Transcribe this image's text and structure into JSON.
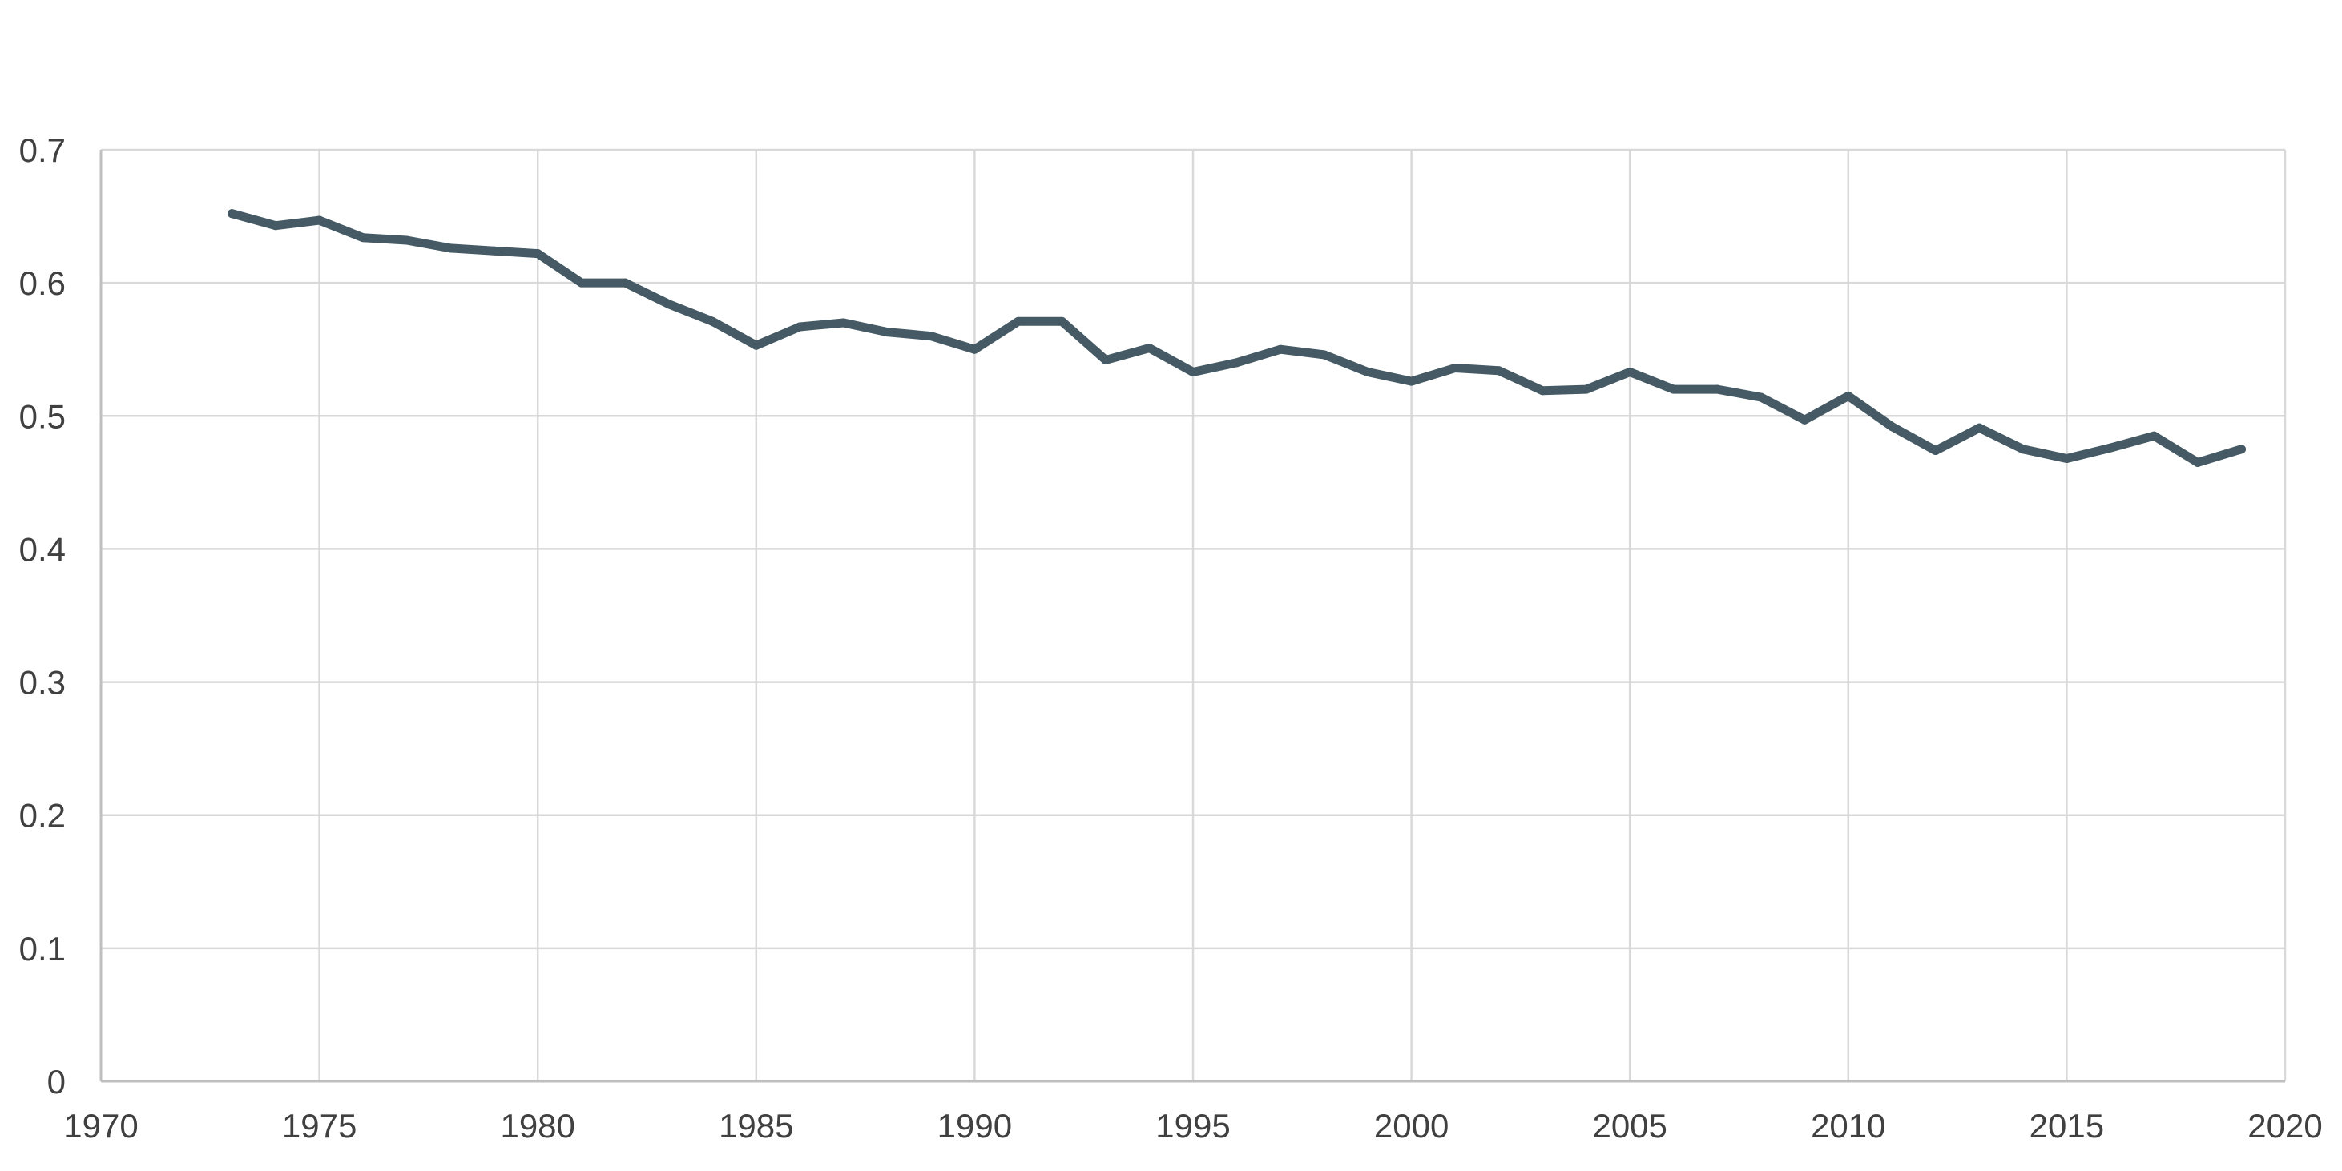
{
  "chart_data": {
    "type": "line",
    "title": "",
    "xlabel": "",
    "ylabel": "",
    "xlim": [
      1970,
      2020
    ],
    "ylim": [
      0,
      0.7
    ],
    "x_ticks": [
      1970,
      1975,
      1980,
      1985,
      1990,
      1995,
      2000,
      2005,
      2010,
      2015,
      2020
    ],
    "y_ticks": [
      0,
      0.1,
      0.2,
      0.3,
      0.4,
      0.5,
      0.6,
      0.7
    ],
    "x_tick_labels": [
      "1970",
      "1975",
      "1980",
      "1985",
      "1990",
      "1995",
      "2000",
      "2005",
      "2010",
      "2015",
      "2020"
    ],
    "y_tick_labels": [
      "0",
      "0.1",
      "0.2",
      "0.3",
      "0.4",
      "0.5",
      "0.6",
      "0.7"
    ],
    "grid": true,
    "legend": "none",
    "colors": {
      "line": "#455a64",
      "grid": "#d9d9d9",
      "axis": "#bfbfbf",
      "text": "#404040"
    },
    "series": [
      {
        "x": [
          1973,
          1974,
          1975,
          1976,
          1977,
          1978,
          1979,
          1980,
          1981,
          1982,
          1983,
          1984,
          1985,
          1986,
          1987,
          1988,
          1989,
          1990,
          1991,
          1992,
          1993,
          1994,
          1995,
          1996,
          1997,
          1998,
          1999,
          2000,
          2001,
          2002,
          2003,
          2004,
          2005,
          2006,
          2007,
          2008,
          2009,
          2010,
          2011,
          2012,
          2013,
          2014,
          2015,
          2016,
          2017,
          2018,
          2019
        ],
        "values": [
          0.652,
          0.643,
          0.647,
          0.634,
          0.632,
          0.626,
          0.624,
          0.622,
          0.6,
          0.6,
          0.584,
          0.571,
          0.553,
          0.567,
          0.57,
          0.563,
          0.56,
          0.55,
          0.571,
          0.571,
          0.542,
          0.551,
          0.533,
          0.54,
          0.55,
          0.546,
          0.533,
          0.526,
          0.536,
          0.534,
          0.519,
          0.52,
          0.533,
          0.52,
          0.52,
          0.514,
          0.497,
          0.515,
          0.492,
          0.474,
          0.491,
          0.475,
          0.468,
          0.476,
          0.485,
          0.465,
          0.475
        ]
      }
    ]
  }
}
